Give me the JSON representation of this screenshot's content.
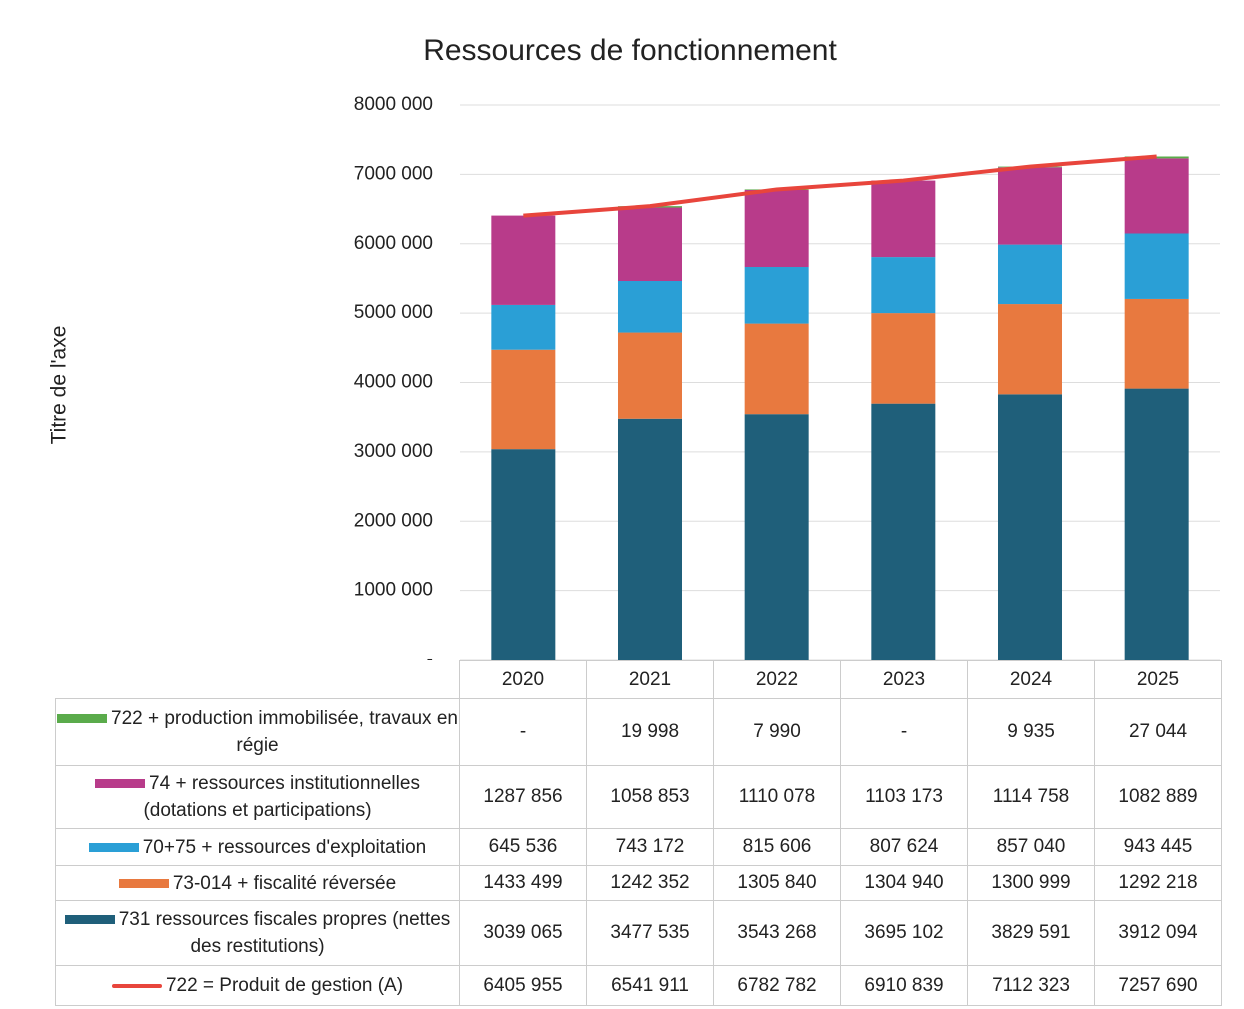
{
  "chart_data": {
    "type": "bar",
    "stacked": true,
    "title": "Ressources de fonctionnement",
    "ylabel": "Titre de l'axe",
    "categories": [
      "2020",
      "2021",
      "2022",
      "2023",
      "2024",
      "2025"
    ],
    "ylim": [
      0,
      8000000
    ],
    "yticks": [
      {
        "value": 0,
        "label": "-"
      },
      {
        "value": 1000000,
        "label": "1000 000"
      },
      {
        "value": 2000000,
        "label": "2000 000"
      },
      {
        "value": 3000000,
        "label": "3000 000"
      },
      {
        "value": 4000000,
        "label": "4000 000"
      },
      {
        "value": 5000000,
        "label": "5000 000"
      },
      {
        "value": 6000000,
        "label": "6000 000"
      },
      {
        "value": 7000000,
        "label": "7000 000"
      },
      {
        "value": 8000000,
        "label": "8000 000"
      }
    ],
    "grid": true,
    "series": [
      {
        "name": "722 + production immobilisée, travaux en régie",
        "color": "#5aab4b",
        "values": [
          0,
          19998,
          7990,
          0,
          9935,
          27044
        ],
        "value_labels": [
          "-",
          "19 998",
          "7 990",
          "-",
          "9 935",
          "27 044"
        ]
      },
      {
        "name": "74 + ressources institutionnelles (dotations et participations)",
        "color": "#b83b8a",
        "values": [
          1287856,
          1058853,
          1110078,
          1103173,
          1114758,
          1082889
        ],
        "value_labels": [
          "1287 856",
          "1058 853",
          "1110 078",
          "1103 173",
          "1114 758",
          "1082 889"
        ]
      },
      {
        "name": "70+75 + ressources d'exploitation",
        "color": "#2a9fd6",
        "values": [
          645536,
          743172,
          815606,
          807624,
          857040,
          943445
        ],
        "value_labels": [
          "645 536",
          "743 172",
          "815 606",
          "807 624",
          "857 040",
          "943 445"
        ]
      },
      {
        "name": "73-014 + fiscalité réversée",
        "color": "#e8793f",
        "values": [
          1433499,
          1242352,
          1305840,
          1304940,
          1300999,
          1292218
        ],
        "value_labels": [
          "1433 499",
          "1242 352",
          "1305 840",
          "1304 940",
          "1300 999",
          "1292 218"
        ]
      },
      {
        "name": "731 ressources fiscales propres (nettes des restitutions)",
        "color": "#1f5f7a",
        "values": [
          3039065,
          3477535,
          3543268,
          3695102,
          3829591,
          3912094
        ],
        "value_labels": [
          "3039 065",
          "3477 535",
          "3543 268",
          "3695 102",
          "3829 591",
          "3912 094"
        ]
      },
      {
        "name": "722 = Produit de gestion (A)",
        "color": "#e8453c",
        "type": "line",
        "values": [
          6405955,
          6541911,
          6782782,
          6910839,
          7112323,
          7257690
        ],
        "value_labels": [
          "6405 955",
          "6541 911",
          "6782 782",
          "6910 839",
          "7112 323",
          "7257 690"
        ]
      }
    ]
  }
}
